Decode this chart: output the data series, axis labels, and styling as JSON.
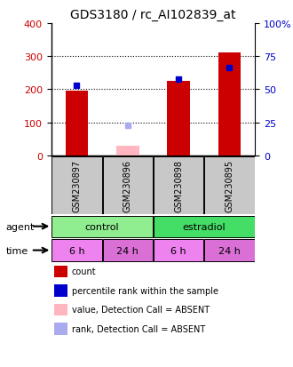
{
  "title": "GDS3180 / rc_AI102839_at",
  "samples": [
    "GSM230897",
    "GSM230896",
    "GSM230898",
    "GSM230895"
  ],
  "count_values": [
    197,
    30,
    225,
    312
  ],
  "rank_values": [
    212,
    90,
    230,
    265
  ],
  "count_absent": [
    false,
    true,
    false,
    false
  ],
  "rank_absent": [
    false,
    true,
    false,
    false
  ],
  "ylim_left": [
    0,
    400
  ],
  "ylim_right": [
    0,
    100
  ],
  "yticks_left": [
    0,
    100,
    200,
    300,
    400
  ],
  "yticks_right": [
    0,
    25,
    50,
    75,
    100
  ],
  "yticklabels_right": [
    "0",
    "25",
    "50",
    "75",
    "100%"
  ],
  "time_labels": [
    "6 h",
    "24 h",
    "6 h",
    "24 h"
  ],
  "time_colors_alt": [
    "#EE82EE",
    "#DA70D6",
    "#EE82EE",
    "#DA70D6"
  ],
  "color_red": "#CC0000",
  "color_blue": "#0000CC",
  "color_pink": "#FFB6C1",
  "color_lightblue": "#AAAAEE",
  "bg_color": "#FFFFFF",
  "label_bg": "#C8C8C8",
  "control_color": "#90EE90",
  "estradiol_color": "#44DD66",
  "legend_items": [
    {
      "color": "#CC0000",
      "label": "count"
    },
    {
      "color": "#0000CC",
      "label": "percentile rank within the sample"
    },
    {
      "color": "#FFB6C1",
      "label": "value, Detection Call = ABSENT"
    },
    {
      "color": "#AAAAEE",
      "label": "rank, Detection Call = ABSENT"
    }
  ]
}
